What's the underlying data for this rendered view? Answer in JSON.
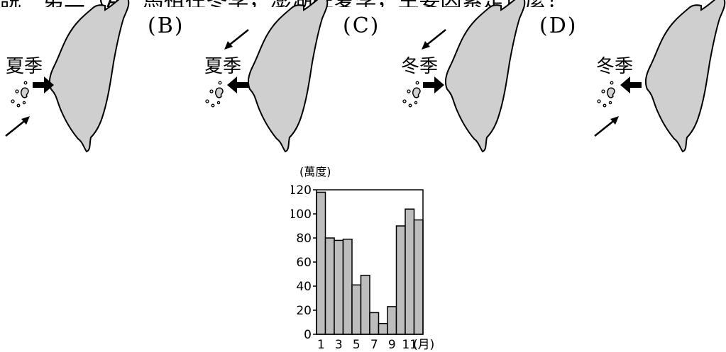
{
  "top_text": "說一第二（A）馬祖在冬季，澎湖在夏季，主要因素是什麼？",
  "options": [
    {
      "label": "(A)",
      "season": "夏季",
      "wind": "southwest",
      "arrow": "right"
    },
    {
      "label": "(B)",
      "season": "夏季",
      "wind": "northeast",
      "arrow": "left"
    },
    {
      "label": "(C)",
      "season": "冬季",
      "wind": "northeast",
      "arrow": "right"
    },
    {
      "label": "(D)",
      "season": "冬季",
      "wind": "southwest",
      "arrow": "left"
    }
  ],
  "option_labels": {
    "b": "(B)",
    "c": "(C)",
    "d": "(D)"
  },
  "trailing_mark": "。",
  "chart_data": {
    "type": "bar",
    "unit_label": "(萬度)",
    "x_unit": "(月)",
    "categories": [
      "1",
      "2",
      "3",
      "4",
      "5",
      "6",
      "7",
      "8",
      "9",
      "10",
      "11",
      "12"
    ],
    "tick_labels_x": [
      "1",
      "3",
      "5",
      "7",
      "9",
      "11"
    ],
    "values": [
      118,
      80,
      78,
      79,
      41,
      49,
      18,
      9,
      23,
      90,
      104,
      95
    ],
    "ylim": [
      0,
      120
    ],
    "yticks": [
      0,
      20,
      40,
      60,
      80,
      100,
      120
    ],
    "colors": {
      "bar": "#bdbdbd",
      "stroke": "#000000"
    }
  }
}
